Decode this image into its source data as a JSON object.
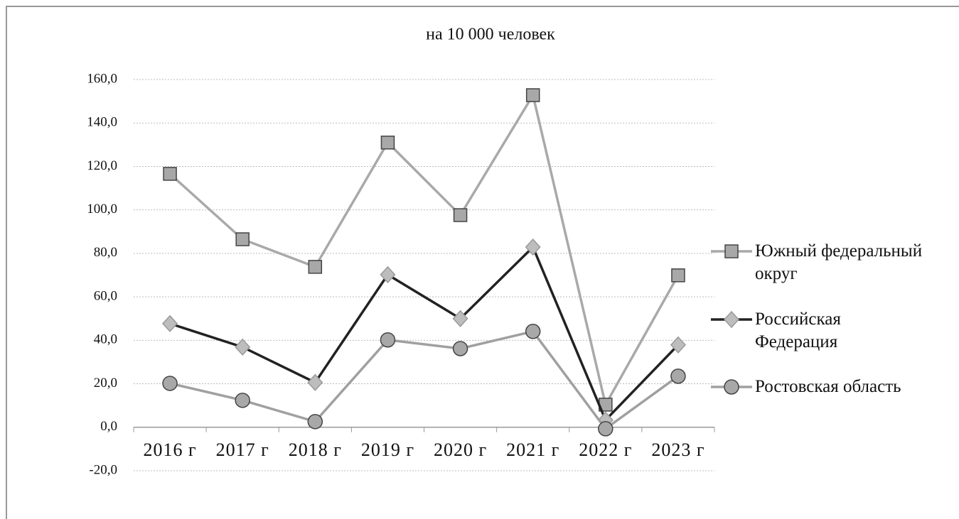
{
  "chart_data": {
    "type": "line",
    "title": "на 10 000 человек",
    "categories": [
      "2016 г",
      "2017 г",
      "2018 г",
      "2019 г",
      "2020 г",
      "2021 г",
      "2022 г",
      "2023 г"
    ],
    "series": [
      {
        "name": "Южный федеральный округ",
        "color": "#a9a9a9",
        "marker": "square",
        "values": [
          116.6,
          86.5,
          73.8,
          131.0,
          97.6,
          152.8,
          10.4,
          69.9
        ]
      },
      {
        "name": "Российская Федерация",
        "color": "#222222",
        "marker": "diamond",
        "values": [
          47.7,
          36.9,
          20.6,
          70.2,
          50.0,
          82.9,
          3.3,
          37.9
        ]
      },
      {
        "name": "Ростовская область",
        "color": "#a0a0a0",
        "marker": "circle",
        "values": [
          20.2,
          12.4,
          2.6,
          40.2,
          36.2,
          44.1,
          -0.7,
          23.5
        ]
      }
    ],
    "ylim": [
      -20,
      160
    ],
    "yticks": [
      {
        "value": -20,
        "label": "-20,0"
      },
      {
        "value": 0,
        "label": "0,0"
      },
      {
        "value": 20,
        "label": "20,0"
      },
      {
        "value": 40,
        "label": "40,0"
      },
      {
        "value": 60,
        "label": "60,0"
      },
      {
        "value": 80,
        "label": "80,0"
      },
      {
        "value": 100,
        "label": "100,0"
      },
      {
        "value": 120,
        "label": "120,0"
      },
      {
        "value": 140,
        "label": "140,0"
      },
      {
        "value": 160,
        "label": "160,0"
      }
    ],
    "grid": true,
    "legend": "right"
  }
}
